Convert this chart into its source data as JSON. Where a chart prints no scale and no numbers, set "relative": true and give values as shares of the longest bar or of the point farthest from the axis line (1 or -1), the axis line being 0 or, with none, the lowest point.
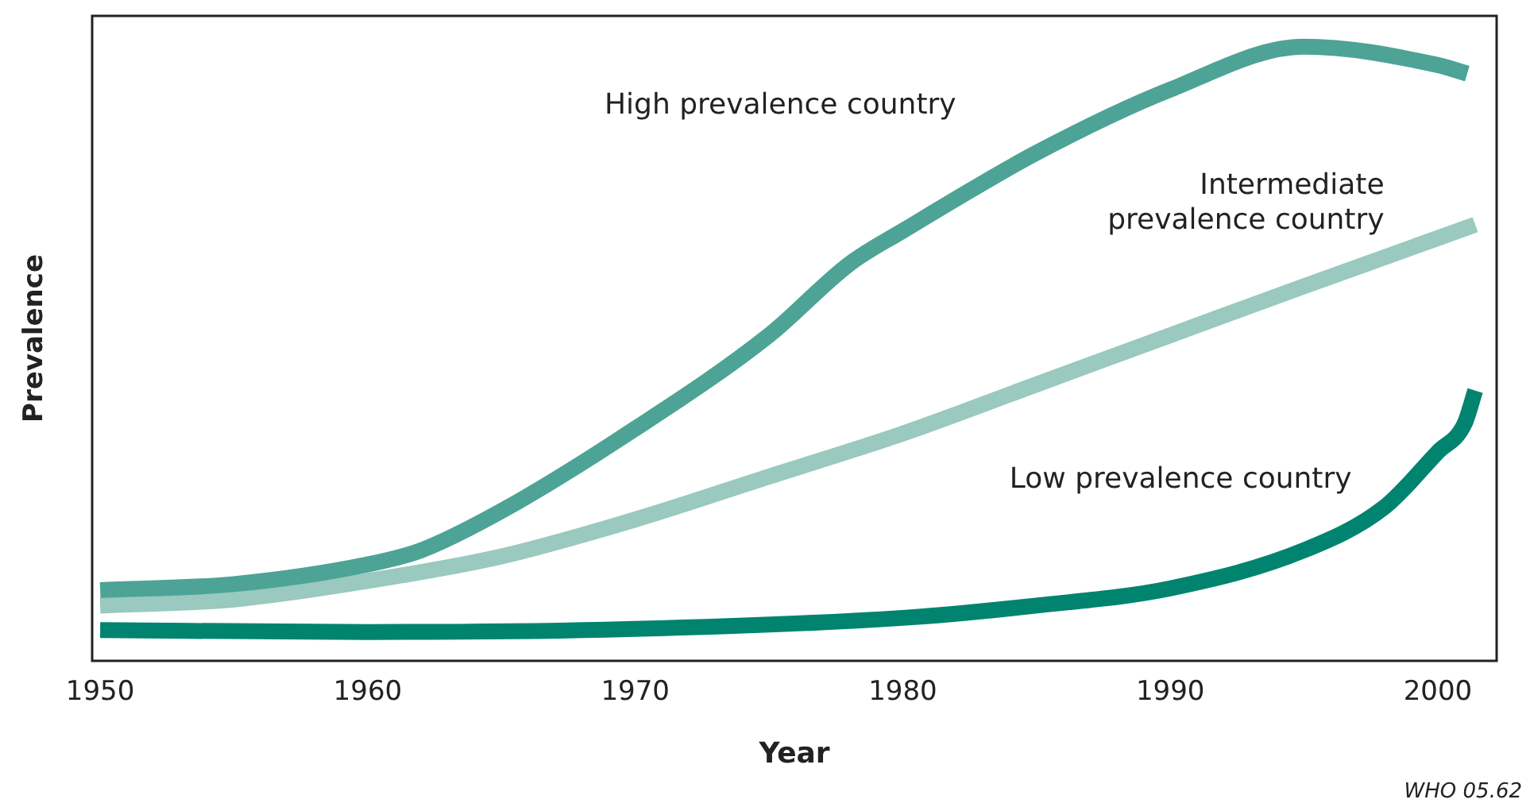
{
  "chart_data": {
    "type": "line",
    "xlabel": "Year",
    "ylabel": "Prevalence",
    "relative": true,
    "xlim": [
      1949.7,
      2002.2
    ],
    "xticks": [
      1950,
      1960,
      1970,
      1980,
      1990,
      2000
    ],
    "tick_labels": "x",
    "grid": false,
    "legend": false,
    "marker": "none",
    "line_style": "solid",
    "annotations": [
      "WHO 05.62"
    ],
    "series": [
      {
        "name": "High prevalence country",
        "color": "#4da396",
        "x": [
          1950,
          1955,
          1960,
          1962,
          1965,
          1970,
          1975,
          1978,
          1980,
          1985,
          1990,
          1995,
          2000,
          2001.1
        ],
        "values": [
          0.115,
          0.125,
          0.157,
          0.18,
          0.244,
          0.378,
          0.53,
          0.646,
          0.7,
          0.827,
          0.93,
          1,
          0.97,
          0.956
        ]
      },
      {
        "name": "Intermediate prevalence country",
        "color": "#99c9bf",
        "x": [
          1950,
          1955,
          1960,
          1965,
          1970,
          1975,
          1980,
          1985,
          1990,
          1995,
          2001.4
        ],
        "values": [
          0.09,
          0.1,
          0.13,
          0.17,
          0.23,
          0.3,
          0.37,
          0.45,
          0.53,
          0.61,
          0.71
        ]
      },
      {
        "name": "Low prevalence country",
        "color": "#00846f",
        "x": [
          1950,
          1960,
          1970,
          1980,
          1985,
          1990,
          1995,
          1998,
          2000,
          2001,
          2001.4
        ],
        "values": [
          0.05,
          0.047,
          0.052,
          0.07,
          0.09,
          0.118,
          0.18,
          0.25,
          0.34,
          0.386,
          0.44
        ]
      }
    ]
  }
}
